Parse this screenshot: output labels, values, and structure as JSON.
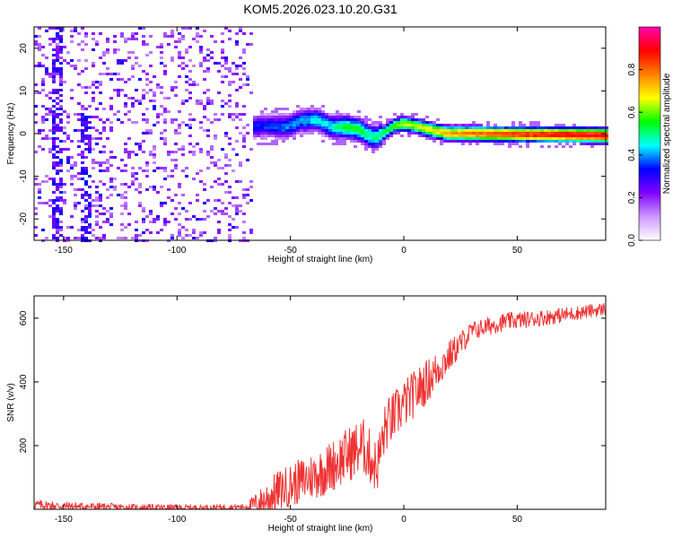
{
  "title": "KOM5.2026.023.10.20.G31",
  "chart_data": [
    {
      "type": "heatmap",
      "name": "spectrogram",
      "xlabel": "Height of straight line (km)",
      "ylabel": "Frequency (Hz)",
      "xlim": [
        -163,
        89
      ],
      "ylim": [
        -25,
        25
      ],
      "xticks": [
        -150,
        -100,
        -50,
        0,
        50
      ],
      "yticks": [
        -20,
        -10,
        0,
        10,
        20
      ],
      "colorbar": {
        "label": "Normalized spectral amplitude",
        "range": [
          0,
          1
        ],
        "ticks": [
          0.0,
          0.2,
          0.4,
          0.6,
          0.8
        ],
        "tick_labels": [
          "0.0",
          "0.2",
          "0.4",
          "0.6",
          "0.8"
        ],
        "colors": [
          "#ffffff",
          "#cc99ff",
          "#8000ff",
          "#0000ff",
          "#00ffff",
          "#00ff00",
          "#ffff00",
          "#ff8000",
          "#ff0000",
          "#ff00aa"
        ]
      },
      "noise_region_x": [
        -163,
        -67
      ],
      "track": [
        {
          "x": -67,
          "f": 1.5,
          "a": 0.35
        },
        {
          "x": -60,
          "f": 1.8,
          "a": 0.35
        },
        {
          "x": -52,
          "f": 1.5,
          "a": 0.4
        },
        {
          "x": -45,
          "f": 3.0,
          "a": 0.42
        },
        {
          "x": -38,
          "f": 3.2,
          "a": 0.45
        },
        {
          "x": -32,
          "f": 1.5,
          "a": 0.45
        },
        {
          "x": -26,
          "f": 1.5,
          "a": 0.55
        },
        {
          "x": -20,
          "f": 1.0,
          "a": 0.55
        },
        {
          "x": -15,
          "f": -0.5,
          "a": 0.5
        },
        {
          "x": -12,
          "f": -1.0,
          "a": 0.5
        },
        {
          "x": -8,
          "f": 0.5,
          "a": 0.55
        },
        {
          "x": -4,
          "f": 1.8,
          "a": 0.6
        },
        {
          "x": 0,
          "f": 2.3,
          "a": 0.65
        },
        {
          "x": 5,
          "f": 1.8,
          "a": 0.65
        },
        {
          "x": 12,
          "f": 0.8,
          "a": 0.7
        },
        {
          "x": 20,
          "f": 0.0,
          "a": 0.75
        },
        {
          "x": 30,
          "f": 0.0,
          "a": 0.8
        },
        {
          "x": 50,
          "f": -0.2,
          "a": 0.85
        },
        {
          "x": 70,
          "f": -0.3,
          "a": 0.9
        },
        {
          "x": 89,
          "f": -0.5,
          "a": 0.9
        }
      ]
    },
    {
      "type": "line",
      "name": "snr",
      "xlabel": "Height of straight line (km)",
      "ylabel": "SNR (v/v)",
      "xlim": [
        -163,
        89
      ],
      "ylim": [
        0,
        670
      ],
      "xticks": [
        -150,
        -100,
        -50,
        0,
        50
      ],
      "yticks": [
        200,
        400,
        600
      ],
      "color": "#ee3333",
      "trend": [
        {
          "x": -163,
          "y": 15
        },
        {
          "x": -150,
          "y": 10
        },
        {
          "x": -120,
          "y": 5
        },
        {
          "x": -90,
          "y": 5
        },
        {
          "x": -70,
          "y": 8
        },
        {
          "x": -62,
          "y": 25
        },
        {
          "x": -55,
          "y": 60
        },
        {
          "x": -45,
          "y": 90
        },
        {
          "x": -35,
          "y": 120
        },
        {
          "x": -25,
          "y": 170
        },
        {
          "x": -18,
          "y": 200
        },
        {
          "x": -12,
          "y": 130
        },
        {
          "x": -8,
          "y": 260
        },
        {
          "x": 0,
          "y": 330
        },
        {
          "x": 10,
          "y": 400
        },
        {
          "x": 20,
          "y": 480
        },
        {
          "x": 30,
          "y": 560
        },
        {
          "x": 45,
          "y": 590
        },
        {
          "x": 60,
          "y": 600
        },
        {
          "x": 75,
          "y": 615
        },
        {
          "x": 89,
          "y": 630
        }
      ],
      "noise_amplitude": [
        {
          "x": -163,
          "a": 15
        },
        {
          "x": -70,
          "a": 8
        },
        {
          "x": -60,
          "a": 60
        },
        {
          "x": -20,
          "a": 90
        },
        {
          "x": 10,
          "a": 70
        },
        {
          "x": 30,
          "a": 30
        },
        {
          "x": 89,
          "a": 20
        }
      ]
    }
  ]
}
